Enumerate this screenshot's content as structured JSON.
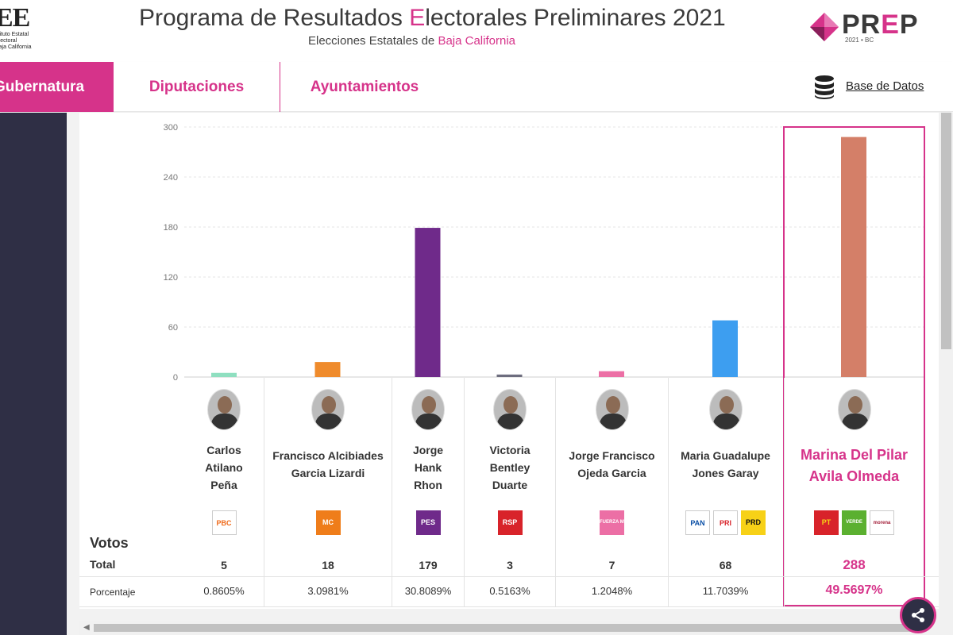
{
  "header": {
    "logo_big": "EE",
    "logo_small_1": "stituto Estatal Electoral",
    "logo_small_2": "Baja California",
    "title_pre": "Programa de Resultados ",
    "title_accent": "E",
    "title_post": "lectorales Preliminares 2021",
    "subtitle_pre": "Elecciones Estatales de ",
    "subtitle_accent": "Baja California",
    "prep_logo_p1": "PR",
    "prep_logo_e": "E",
    "prep_logo_p2": "P",
    "prep_year": "2021 • BC"
  },
  "nav": {
    "tabs": [
      {
        "label": "Gubernatura"
      },
      {
        "label": "Diputaciones"
      },
      {
        "label": "Ayuntamientos"
      }
    ],
    "database_link": "Base de Datos"
  },
  "table": {
    "votes_heading": "Votos",
    "total_label": "Total",
    "percent_label": "Porcentaje"
  },
  "colors": {
    "accent": "#d6338a",
    "sidebar": "#2f2f45"
  },
  "chart_data": {
    "type": "bar",
    "ylim": [
      0,
      300
    ],
    "yticks": [
      "0",
      "60",
      "120",
      "180",
      "240",
      "300"
    ],
    "categories": [
      "Carlos Atilano Peña",
      "Francisco Alcibiades Garcia Lizardi",
      "Jorge Hank Rhon",
      "Victoria Bentley Duarte",
      "Jorge Francisco Ojeda Garcia",
      "Maria Guadalupe Jones Garay",
      "Marina Del Pilar Avila Olmeda"
    ],
    "values": [
      5,
      18,
      179,
      3,
      7,
      68,
      288
    ],
    "bar_colors": [
      "#8fdfc0",
      "#ef8b2c",
      "#6f2a8a",
      "#6d6d7e",
      "#ec6fa5",
      "#3d9ef0",
      "#d47f68"
    ],
    "grid": true
  },
  "candidates": [
    {
      "name_lines": [
        "Carlos",
        "Atilano",
        "Peña"
      ],
      "votes": "5",
      "percent": "0.8605%",
      "parties": [
        {
          "label": "PBC",
          "icon": "pbc-logo",
          "fg": "#ef6a1a",
          "bg": "#fff"
        }
      ]
    },
    {
      "name_lines": [
        "Francisco Alcibiades",
        "Garcia Lizardi"
      ],
      "votes": "18",
      "percent": "3.0981%",
      "parties": [
        {
          "label": "MC",
          "icon": "movimiento-ciudadano-logo",
          "fg": "#fff",
          "bg": "#ef7d1a"
        }
      ]
    },
    {
      "name_lines": [
        "Jorge",
        "Hank",
        "Rhon"
      ],
      "votes": "179",
      "percent": "30.8089%",
      "parties": [
        {
          "label": "PES",
          "icon": "pes-logo",
          "fg": "#fff",
          "bg": "#6f2a8a"
        }
      ]
    },
    {
      "name_lines": [
        "Victoria",
        "Bentley",
        "Duarte"
      ],
      "votes": "3",
      "percent": "0.5163%",
      "parties": [
        {
          "label": "RSP",
          "icon": "rsp-logo",
          "fg": "#fff",
          "bg": "#d8232a"
        }
      ]
    },
    {
      "name_lines": [
        "Jorge Francisco",
        "Ojeda Garcia"
      ],
      "votes": "7",
      "percent": "1.2048%",
      "parties": [
        {
          "label": "FUERZA MÉXICO",
          "icon": "fuerza-mexico-logo",
          "fg": "#fff",
          "bg": "#ec6fa5"
        }
      ]
    },
    {
      "name_lines": [
        "Maria Guadalupe",
        "Jones Garay"
      ],
      "votes": "68",
      "percent": "11.7039%",
      "parties": [
        {
          "label": "PAN",
          "icon": "pan-logo",
          "fg": "#0a4fa6",
          "bg": "#fff"
        },
        {
          "label": "PRI",
          "icon": "pri-logo",
          "fg": "#d8232a",
          "bg": "#fff"
        },
        {
          "label": "PRD",
          "icon": "prd-logo",
          "fg": "#111",
          "bg": "#f7d117"
        }
      ]
    },
    {
      "name_lines": [
        "Marina Del Pilar",
        "Avila Olmeda"
      ],
      "votes": "288",
      "percent": "49.5697%",
      "winner": true,
      "parties": [
        {
          "label": "PT",
          "icon": "pt-logo",
          "fg": "#f7d117",
          "bg": "#d8232a"
        },
        {
          "label": "VERDE",
          "icon": "verde-logo",
          "fg": "#fff",
          "bg": "#5bb030"
        },
        {
          "label": "morena",
          "icon": "morena-logo",
          "fg": "#a3203a",
          "bg": "#fff"
        }
      ]
    }
  ]
}
